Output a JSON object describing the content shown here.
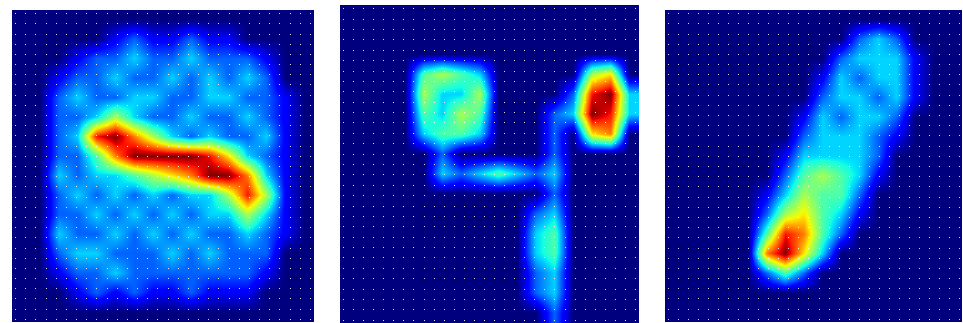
{
  "chart_data": [
    {
      "type": "heatmap",
      "tick_labels": false,
      "cells": [
        [
          0,
          0,
          0,
          0,
          0,
          0,
          0,
          0,
          0,
          0,
          0,
          0,
          0,
          0,
          0,
          0
        ],
        [
          0,
          0,
          0,
          0,
          0,
          1,
          2,
          1,
          1,
          2,
          1,
          1,
          0,
          0,
          0,
          0
        ],
        [
          0,
          0,
          0,
          1,
          2,
          2,
          3,
          2,
          2,
          3,
          2,
          2,
          2,
          1,
          0,
          0
        ],
        [
          0,
          0,
          1,
          2,
          2,
          3,
          2,
          2,
          3,
          2,
          3,
          2,
          3,
          2,
          0,
          0
        ],
        [
          0,
          0,
          2,
          3,
          2,
          2,
          3,
          3,
          2,
          2,
          3,
          3,
          2,
          2,
          1,
          0
        ],
        [
          0,
          0,
          2,
          2,
          3,
          5,
          3,
          2,
          2,
          3,
          2,
          2,
          3,
          2,
          1,
          0
        ],
        [
          0,
          0,
          2,
          3,
          8,
          9,
          7,
          5,
          3,
          2,
          3,
          2,
          2,
          3,
          1,
          0
        ],
        [
          0,
          0,
          2,
          2,
          4,
          7,
          9,
          9,
          9,
          9,
          8,
          6,
          3,
          2,
          1,
          0
        ],
        [
          0,
          0,
          3,
          2,
          3,
          3,
          4,
          5,
          6,
          7,
          9,
          9,
          7,
          3,
          1,
          0
        ],
        [
          0,
          0,
          2,
          3,
          2,
          3,
          2,
          3,
          2,
          3,
          3,
          5,
          8,
          5,
          1,
          0
        ],
        [
          0,
          0,
          2,
          2,
          3,
          2,
          3,
          2,
          3,
          2,
          3,
          3,
          5,
          3,
          1,
          0
        ],
        [
          0,
          0,
          3,
          2,
          2,
          3,
          2,
          3,
          2,
          3,
          2,
          2,
          3,
          2,
          1,
          0
        ],
        [
          0,
          0,
          2,
          3,
          3,
          2,
          2,
          2,
          3,
          2,
          3,
          2,
          2,
          2,
          0,
          0
        ],
        [
          0,
          0,
          1,
          2,
          2,
          3,
          2,
          2,
          2,
          2,
          2,
          2,
          2,
          1,
          0,
          0
        ],
        [
          0,
          0,
          0,
          1,
          2,
          1,
          2,
          1,
          1,
          2,
          1,
          1,
          1,
          0,
          0,
          0
        ],
        [
          0,
          0,
          0,
          0,
          0,
          0,
          0,
          0,
          0,
          0,
          0,
          0,
          0,
          0,
          0,
          0
        ]
      ]
    },
    {
      "type": "heatmap",
      "tick_labels": false,
      "cells": [
        [
          0,
          0,
          0,
          0,
          0,
          0,
          0,
          0,
          0,
          0,
          0,
          0,
          0,
          0,
          0,
          0
        ],
        [
          0,
          0,
          0,
          0,
          0,
          0,
          0,
          0,
          0,
          0,
          0,
          0,
          0,
          0,
          0,
          0
        ],
        [
          0,
          0,
          0,
          0,
          0,
          0,
          0,
          0,
          0,
          0,
          0,
          0,
          0,
          0,
          0,
          0
        ],
        [
          0,
          0,
          0,
          0,
          4,
          5,
          4,
          3,
          0,
          0,
          0,
          0,
          0,
          5,
          6,
          0
        ],
        [
          0,
          0,
          0,
          0,
          5,
          3,
          3,
          5,
          0,
          0,
          0,
          0,
          2,
          8,
          9,
          3
        ],
        [
          0,
          0,
          0,
          0,
          4,
          3,
          5,
          4,
          0,
          0,
          0,
          2,
          3,
          9,
          8,
          3
        ],
        [
          0,
          0,
          0,
          0,
          3,
          4,
          4,
          3,
          0,
          0,
          0,
          2,
          0,
          6,
          7,
          0
        ],
        [
          0,
          0,
          0,
          0,
          0,
          2,
          0,
          0,
          0,
          0,
          0,
          2,
          0,
          0,
          0,
          0
        ],
        [
          0,
          0,
          0,
          0,
          0,
          3,
          2,
          3,
          4,
          3,
          2,
          3,
          0,
          0,
          0,
          0
        ],
        [
          0,
          0,
          0,
          0,
          0,
          0,
          0,
          0,
          0,
          0,
          0,
          2,
          0,
          0,
          0,
          0
        ],
        [
          0,
          0,
          0,
          0,
          0,
          0,
          0,
          0,
          0,
          0,
          2,
          3,
          0,
          0,
          0,
          0
        ],
        [
          0,
          0,
          0,
          0,
          0,
          0,
          0,
          0,
          0,
          0,
          3,
          4,
          0,
          0,
          0,
          0
        ],
        [
          0,
          0,
          0,
          0,
          0,
          0,
          0,
          0,
          0,
          0,
          3,
          4,
          0,
          0,
          0,
          0
        ],
        [
          0,
          0,
          0,
          0,
          0,
          0,
          0,
          0,
          0,
          0,
          2,
          3,
          0,
          0,
          0,
          0
        ],
        [
          0,
          0,
          0,
          0,
          0,
          0,
          0,
          0,
          0,
          0,
          2,
          3,
          0,
          0,
          0,
          0
        ],
        [
          0,
          0,
          0,
          0,
          0,
          0,
          0,
          0,
          0,
          0,
          0,
          2,
          0,
          0,
          0,
          0
        ]
      ]
    },
    {
      "type": "heatmap",
      "tick_labels": false,
      "cells": [
        [
          0,
          0,
          0,
          0,
          0,
          0,
          0,
          0,
          0,
          0,
          0,
          0,
          0,
          0,
          0,
          0
        ],
        [
          0,
          0,
          0,
          0,
          0,
          0,
          0,
          0,
          0,
          0,
          2,
          3,
          2,
          0,
          0,
          0
        ],
        [
          0,
          0,
          0,
          0,
          0,
          0,
          0,
          0,
          0,
          2,
          3,
          3,
          3,
          1,
          0,
          0
        ],
        [
          0,
          0,
          0,
          0,
          0,
          0,
          0,
          0,
          1,
          3,
          2,
          3,
          3,
          1,
          0,
          0
        ],
        [
          0,
          0,
          0,
          0,
          0,
          0,
          0,
          0,
          2,
          3,
          3,
          2,
          3,
          1,
          0,
          0
        ],
        [
          0,
          0,
          0,
          0,
          0,
          0,
          0,
          1,
          3,
          2,
          3,
          3,
          2,
          0,
          0,
          0
        ],
        [
          0,
          0,
          0,
          0,
          0,
          0,
          0,
          2,
          3,
          3,
          3,
          2,
          1,
          0,
          0,
          0
        ],
        [
          0,
          0,
          0,
          0,
          0,
          0,
          1,
          3,
          3,
          3,
          3,
          2,
          0,
          0,
          0,
          0
        ],
        [
          0,
          0,
          0,
          0,
          0,
          0,
          2,
          4,
          5,
          4,
          3,
          1,
          0,
          0,
          0,
          0
        ],
        [
          0,
          0,
          0,
          0,
          0,
          1,
          3,
          5,
          4,
          4,
          2,
          0,
          0,
          0,
          0,
          0
        ],
        [
          0,
          0,
          0,
          0,
          0,
          2,
          5,
          6,
          4,
          3,
          1,
          0,
          0,
          0,
          0,
          0
        ],
        [
          0,
          0,
          0,
          0,
          0,
          4,
          8,
          7,
          4,
          2,
          0,
          0,
          0,
          0,
          0,
          0
        ],
        [
          0,
          0,
          0,
          0,
          0,
          7,
          9,
          6,
          3,
          0,
          0,
          0,
          0,
          0,
          0,
          0
        ],
        [
          0,
          0,
          0,
          0,
          0,
          2,
          4,
          2,
          0,
          0,
          0,
          0,
          0,
          0,
          0,
          0
        ],
        [
          0,
          0,
          0,
          0,
          0,
          0,
          0,
          0,
          0,
          0,
          0,
          0,
          0,
          0,
          0,
          0
        ],
        [
          0,
          0,
          0,
          0,
          0,
          0,
          0,
          0,
          0,
          0,
          0,
          0,
          0,
          0,
          0,
          0
        ]
      ]
    }
  ]
}
